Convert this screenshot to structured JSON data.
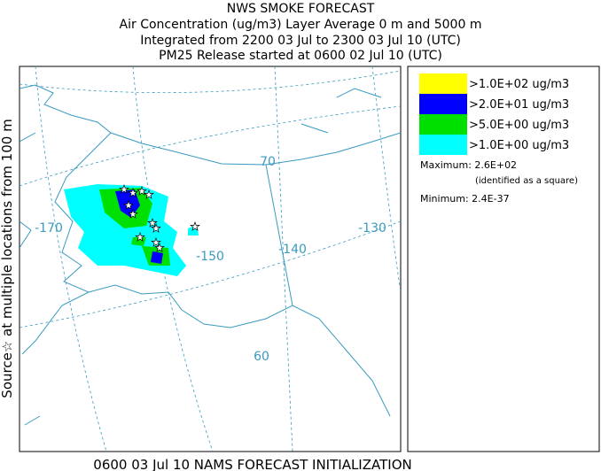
{
  "header": {
    "title": "NWS SMOKE FORECAST",
    "lines": [
      "Air Concentration (ug/m3) Layer Average    0 m and  5000 m",
      "Integrated from 2200 03 Jul to 2300 03 Jul 10 (UTC)",
      "PM25 Release started at 0600 02 Jul 10 (UTC)"
    ]
  },
  "side_label": "Source☆ at multiple locations from  100 m",
  "legend": {
    "items": [
      {
        "label": ">1.0E+02 ug/m3",
        "color": "#ffff00"
      },
      {
        "label": ">2.0E+01 ug/m3",
        "color": "#0000ff"
      },
      {
        "label": ">5.0E+00 ug/m3",
        "color": "#00e000"
      },
      {
        "label": ">1.0E+00 ug/m3",
        "color": "#00ffff"
      }
    ],
    "maximum": "Maximum: 2.6E+02",
    "maximum_note": "(identified as a square)",
    "minimum": "Minimum: 2.4E-37"
  },
  "map": {
    "graticule_labels": [
      "-170",
      "-150",
      "-140",
      "-130",
      "70",
      "60"
    ]
  },
  "footer": "0600 03 Jul 10 NAMS FORECAST INITIALIZATION"
}
